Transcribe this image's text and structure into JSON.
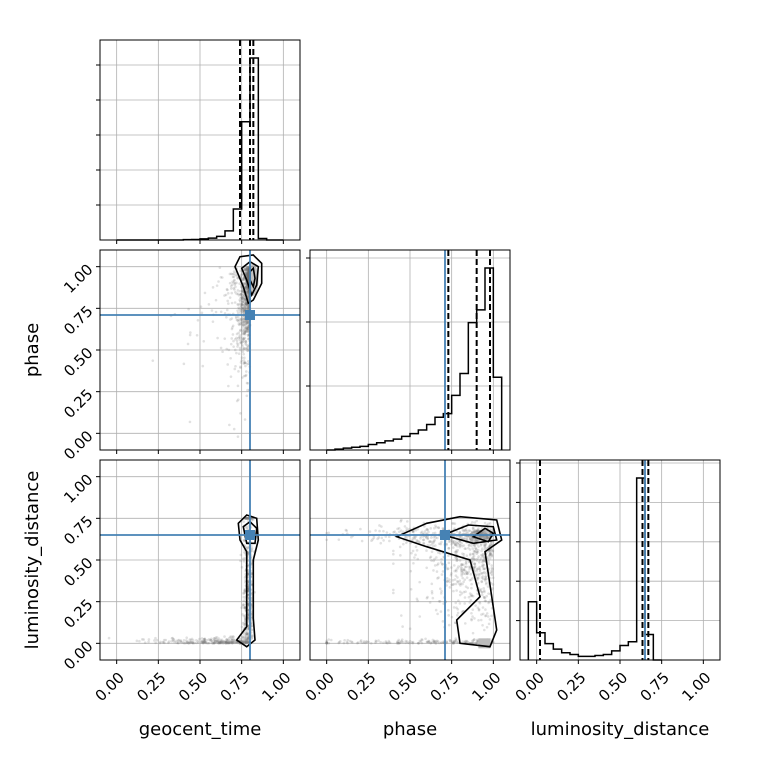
{
  "chart_data": {
    "type": "corner",
    "parameters": [
      "geocent_time",
      "phase",
      "luminosity_distance"
    ],
    "ticks": [
      "0.00",
      "0.25",
      "0.50",
      "0.75",
      "1.00"
    ],
    "lim": [
      -0.1,
      1.1
    ],
    "grid": true,
    "truth_color": "#4682b4",
    "truths": {
      "geocent_time": 0.8,
      "phase": 0.71,
      "luminosity_distance": 0.65
    },
    "histograms": {
      "geocent_time": {
        "edges": [
          0.0,
          0.05,
          0.1,
          0.15,
          0.2,
          0.25,
          0.3,
          0.35,
          0.4,
          0.45,
          0.5,
          0.55,
          0.6,
          0.65,
          0.7,
          0.75,
          0.8,
          0.85,
          0.9,
          0.95,
          1.0
        ],
        "counts": [
          0,
          0,
          0,
          0,
          0,
          0,
          0,
          0,
          0.002,
          0.003,
          0.006,
          0.01,
          0.02,
          0.05,
          0.17,
          0.65,
          1.0,
          0.008,
          0,
          0
        ],
        "quantiles": [
          0.74,
          0.8,
          0.82
        ]
      },
      "phase": {
        "edges": [
          0.0,
          0.05,
          0.1,
          0.15,
          0.2,
          0.25,
          0.3,
          0.35,
          0.4,
          0.45,
          0.5,
          0.55,
          0.6,
          0.65,
          0.7,
          0.75,
          0.8,
          0.85,
          0.9,
          0.95,
          1.0,
          1.05
        ],
        "counts": [
          0,
          0.005,
          0.01,
          0.015,
          0.02,
          0.03,
          0.04,
          0.05,
          0.06,
          0.075,
          0.09,
          0.11,
          0.14,
          0.18,
          0.2,
          0.3,
          0.42,
          0.7,
          0.77,
          1.0,
          0.4
        ],
        "quantiles": [
          0.73,
          0.9,
          0.98
        ]
      },
      "luminosity_distance": {
        "edges": [
          -0.05,
          0.0,
          0.05,
          0.1,
          0.15,
          0.2,
          0.25,
          0.3,
          0.35,
          0.4,
          0.45,
          0.5,
          0.55,
          0.6,
          0.65,
          0.7,
          0.75
        ],
        "counts": [
          0.32,
          0.15,
          0.09,
          0.06,
          0.04,
          0.03,
          0.02,
          0.02,
          0.025,
          0.03,
          0.05,
          0.08,
          0.1,
          1.0,
          0.14,
          0.0
        ],
        "quantiles": [
          0.02,
          0.635,
          0.67
        ]
      }
    },
    "pairs": [
      {
        "x": "geocent_time",
        "y": "phase",
        "mode": [
          0.81,
          0.93
        ]
      },
      {
        "x": "geocent_time",
        "y": "luminosity_distance",
        "mode": [
          0.8,
          0.65
        ]
      },
      {
        "x": "phase",
        "y": "luminosity_distance",
        "mode": [
          0.95,
          0.65
        ]
      }
    ]
  }
}
